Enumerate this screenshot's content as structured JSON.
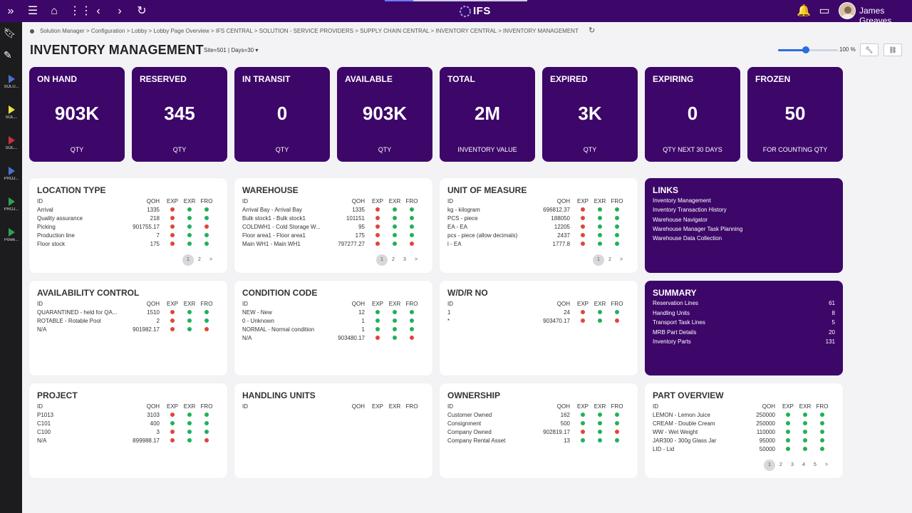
{
  "user": {
    "name": "James Greaves"
  },
  "logo": {
    "text": "IFS"
  },
  "loading_progress": 0.2,
  "sidebar": {
    "items": [
      {
        "label": "SOLU...",
        "color": "#4a6fd0"
      },
      {
        "label": "SOL...",
        "color": "#e8e23a"
      },
      {
        "label": "SOL...",
        "color": "#c8303a"
      },
      {
        "label": "PROJ...",
        "color": "#4a6fd0"
      },
      {
        "label": "PROJ...",
        "color": "#30a050"
      },
      {
        "label": "Powe...",
        "color": "#30a050"
      }
    ]
  },
  "breadcrumb": "Solution Manager > Configuration > Lobby > Lobby Page Overview > IFS CENTRAL > SOLUTION - SERVICE PROVIDERS > SUPPLY CHAIN CENTRAL > INVENTORY CENTRAL > INVENTORY MANAGEMENT",
  "page": {
    "title": "INVENTORY MANAGEMENT",
    "params": "Site=501 | Days=30"
  },
  "zoom": {
    "label": "100 %",
    "level": 0.47
  },
  "kpis": [
    {
      "title": "ON HAND",
      "value": "903K",
      "sub": "QTY"
    },
    {
      "title": "RESERVED",
      "value": "345",
      "sub": "QTY"
    },
    {
      "title": "IN TRANSIT",
      "value": "0",
      "sub": "QTY"
    },
    {
      "title": "AVAILABLE",
      "value": "903K",
      "sub": "QTY"
    },
    {
      "title": "TOTAL",
      "value": "2M",
      "sub": "INVENTORY VALUE"
    },
    {
      "title": "EXPIRED",
      "value": "3K",
      "sub": "QTY"
    },
    {
      "title": "EXPIRING",
      "value": "0",
      "sub": "QTY NEXT 30 DAYS"
    },
    {
      "title": "FROZEN",
      "value": "50",
      "sub": "FOR COUNTING QTY"
    }
  ],
  "headers": {
    "id": "ID",
    "qoh": "QOH",
    "exp": "EXP",
    "exr": "EXR",
    "fro": "FRO"
  },
  "cards": {
    "location_type": {
      "title": "LOCATION TYPE",
      "rows": [
        {
          "id": "Arrival",
          "qoh": "1335",
          "exp": "r",
          "exr": "g",
          "fro": "g"
        },
        {
          "id": "Quality assurance",
          "qoh": "218",
          "exp": "r",
          "exr": "g",
          "fro": "g"
        },
        {
          "id": "Picking",
          "qoh": "901755.17",
          "exp": "r",
          "exr": "g",
          "fro": "r"
        },
        {
          "id": "Production line",
          "qoh": "7",
          "exp": "r",
          "exr": "g",
          "fro": "g"
        },
        {
          "id": "Floor stock",
          "qoh": "175",
          "exp": "r",
          "exr": "g",
          "fro": "g"
        }
      ],
      "pages": [
        "1",
        "2",
        ">"
      ]
    },
    "warehouse": {
      "title": "WAREHOUSE",
      "rows": [
        {
          "id": "Arrival Bay - Arrival Bay",
          "qoh": "1335",
          "exp": "r",
          "exr": "g",
          "fro": "g"
        },
        {
          "id": "Bulk stock1 - Bulk stock1",
          "qoh": "101151",
          "exp": "r",
          "exr": "g",
          "fro": "g"
        },
        {
          "id": "COLDWH1 - Cold Storage W...",
          "qoh": "95",
          "exp": "r",
          "exr": "g",
          "fro": "g"
        },
        {
          "id": "Floor area1 - Floor area1",
          "qoh": "175",
          "exp": "r",
          "exr": "g",
          "fro": "g"
        },
        {
          "id": "Main WH1 - Main WH1",
          "qoh": "797277.27",
          "exp": "r",
          "exr": "g",
          "fro": "r"
        }
      ],
      "pages": [
        "1",
        "2",
        "3",
        ">"
      ]
    },
    "unit_of_measure": {
      "title": "UNIT OF MEASURE",
      "rows": [
        {
          "id": "kg - kilogram",
          "qoh": "696812.37",
          "exp": "r",
          "exr": "g",
          "fro": "g"
        },
        {
          "id": "PCS - piece",
          "qoh": "188050",
          "exp": "r",
          "exr": "g",
          "fro": "g"
        },
        {
          "id": "EA - EA",
          "qoh": "12205",
          "exp": "r",
          "exr": "g",
          "fro": "g"
        },
        {
          "id": "pcs - piece (allow decimals)",
          "qoh": "2437",
          "exp": "r",
          "exr": "g",
          "fro": "g"
        },
        {
          "id": "l - EA",
          "qoh": "1777.8",
          "exp": "r",
          "exr": "g",
          "fro": "g"
        }
      ],
      "pages": [
        "1",
        "2",
        ">"
      ]
    },
    "availability_control": {
      "title": "AVAILABILITY CONTROL",
      "rows": [
        {
          "id": "QUARANTINED - held for QA...",
          "qoh": "1510",
          "exp": "r",
          "exr": "g",
          "fro": "g"
        },
        {
          "id": "ROTABLE - Rotable Pool",
          "qoh": "2",
          "exp": "r",
          "exr": "g",
          "fro": "g"
        },
        {
          "id": "N/A",
          "qoh": "901982.17",
          "exp": "r",
          "exr": "g",
          "fro": "r"
        }
      ]
    },
    "condition_code": {
      "title": "CONDITION CODE",
      "rows": [
        {
          "id": "NEW - New",
          "qoh": "12",
          "exp": "g",
          "exr": "g",
          "fro": "g"
        },
        {
          "id": "0 - Unknown",
          "qoh": "1",
          "exp": "g",
          "exr": "g",
          "fro": "g"
        },
        {
          "id": "NORMAL - Normal condition",
          "qoh": "1",
          "exp": "g",
          "exr": "g",
          "fro": "g"
        },
        {
          "id": "N/A",
          "qoh": "903480.17",
          "exp": "r",
          "exr": "g",
          "fro": "r"
        }
      ]
    },
    "wdr_no": {
      "title": "W/D/R NO",
      "rows": [
        {
          "id": "1",
          "qoh": "24",
          "exp": "r",
          "exr": "g",
          "fro": "g"
        },
        {
          "id": "*",
          "qoh": "903470.17",
          "exp": "r",
          "exr": "g",
          "fro": "r"
        }
      ]
    },
    "project": {
      "title": "PROJECT",
      "rows": [
        {
          "id": "P1013",
          "qoh": "3103",
          "exp": "r",
          "exr": "g",
          "fro": "g"
        },
        {
          "id": "C101",
          "qoh": "400",
          "exp": "g",
          "exr": "g",
          "fro": "g"
        },
        {
          "id": "C100",
          "qoh": "3",
          "exp": "r",
          "exr": "g",
          "fro": "g"
        },
        {
          "id": "N/A",
          "qoh": "899988.17",
          "exp": "r",
          "exr": "g",
          "fro": "r"
        }
      ]
    },
    "handling_units": {
      "title": "HANDLING UNITS",
      "rows": []
    },
    "ownership": {
      "title": "OWNERSHIP",
      "rows": [
        {
          "id": "Customer Owned",
          "qoh": "162",
          "exp": "g",
          "exr": "g",
          "fro": "g"
        },
        {
          "id": "Consignment",
          "qoh": "500",
          "exp": "g",
          "exr": "g",
          "fro": "g"
        },
        {
          "id": "Company Owned",
          "qoh": "902819.17",
          "exp": "r",
          "exr": "g",
          "fro": "r"
        },
        {
          "id": "Company Rental Asset",
          "qoh": "13",
          "exp": "g",
          "exr": "g",
          "fro": "g"
        }
      ]
    },
    "part_overview": {
      "title": "PART OVERVIEW",
      "rows": [
        {
          "id": "LEMON - Lemon Juice",
          "qoh": "250000",
          "exp": "g",
          "exr": "g",
          "fro": "g"
        },
        {
          "id": "CREAM - Double Cream",
          "qoh": "250000",
          "exp": "g",
          "exr": "g",
          "fro": "g"
        },
        {
          "id": "WW - Wet Weight",
          "qoh": "110000",
          "exp": "g",
          "exr": "g",
          "fro": "g"
        },
        {
          "id": "JAR300 - 300g Glass Jar",
          "qoh": "95000",
          "exp": "g",
          "exr": "g",
          "fro": "g"
        },
        {
          "id": "LID - Lid",
          "qoh": "50000",
          "exp": "g",
          "exr": "g",
          "fro": "g"
        }
      ],
      "pages": [
        "1",
        "2",
        "3",
        "4",
        "5",
        ">"
      ]
    }
  },
  "links": {
    "title": "LINKS",
    "items": [
      "Inventory Management",
      "Inventory Transaction History",
      "Warehouse Navigator",
      "Warehouse Manager Task Planning",
      "Warehouse Data Collection"
    ]
  },
  "summary": {
    "title": "SUMMARY",
    "rows": [
      {
        "label": "Reservation Lines",
        "value": "61"
      },
      {
        "label": "Handling Units",
        "value": "8"
      },
      {
        "label": "Transport Task Lines",
        "value": "5"
      },
      {
        "label": "MRB Part Details",
        "value": "20"
      },
      {
        "label": "Inventory Parts",
        "value": "131"
      }
    ]
  }
}
